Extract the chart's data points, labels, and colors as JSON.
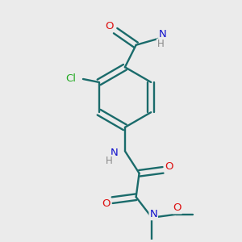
{
  "background_color": "#ebebeb",
  "bond_color": "#1a6b6b",
  "atom_colors": {
    "O": "#dd1111",
    "N": "#1111cc",
    "Cl": "#22aa22",
    "H": "#888888",
    "C": "#1a6b6b"
  },
  "figsize": [
    3.0,
    3.0
  ],
  "dpi": 100
}
